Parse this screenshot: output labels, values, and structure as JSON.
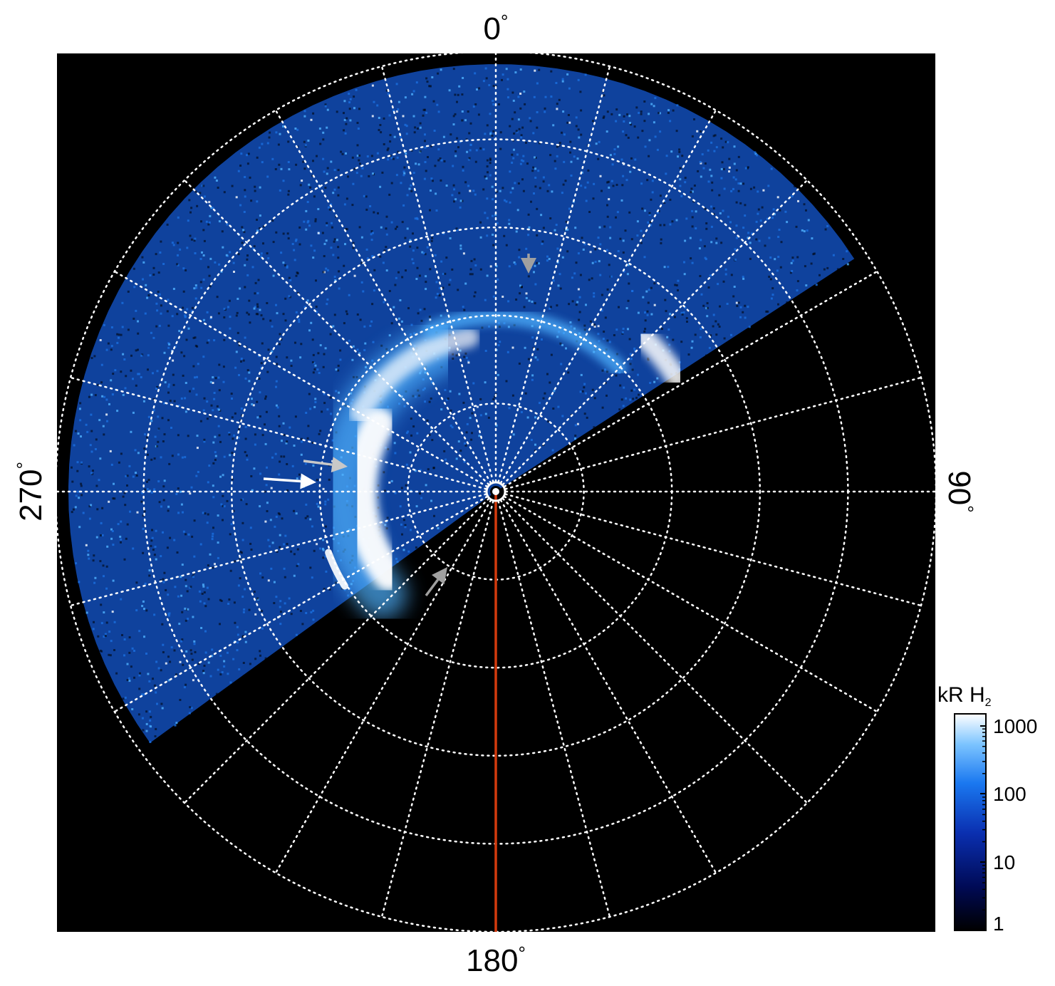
{
  "figure": {
    "background_color": "#000000",
    "grid_color": "#ffffff",
    "grid_style": "dotted",
    "azimuth_labels": {
      "top": "0",
      "right": "90",
      "bottom": "180",
      "left": "270",
      "degree_symbol": "°"
    },
    "azimuth_line_count": 24,
    "ring_count": 5,
    "meridian_line_color": "#d23a0e",
    "emission_colors": {
      "dim": "#0a2a7a",
      "medium": "#1a6fe0",
      "bright": "#4fb2ff",
      "peak": "#ffffff"
    },
    "arrows": [
      {
        "color": "#ffffff",
        "label": ""
      },
      {
        "color": "#c8c8c8",
        "label": ""
      },
      {
        "color": "#a0a0a0",
        "label": ""
      },
      {
        "color": "#a0a0a0",
        "label": ""
      }
    ]
  },
  "colorbar": {
    "title_main": "kR H",
    "title_sub": "2",
    "scale": "log",
    "ticks": [
      "1",
      "10",
      "100",
      "1000"
    ],
    "range": [
      1,
      1500
    ],
    "colors": [
      "#000000",
      "#000a55",
      "#0a2fb0",
      "#1a78f0",
      "#7cc4ff",
      "#ffffff"
    ]
  }
}
